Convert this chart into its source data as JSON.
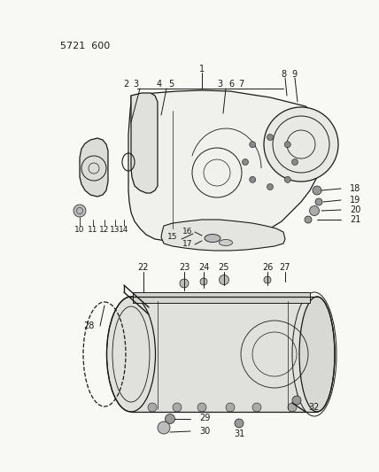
{
  "title": "5721 600",
  "bg": "#f8f8f5",
  "lc": "#1a1a1a",
  "tc": "#1a1a1a",
  "fig_w": 4.28,
  "fig_h": 5.33,
  "dpi": 100
}
